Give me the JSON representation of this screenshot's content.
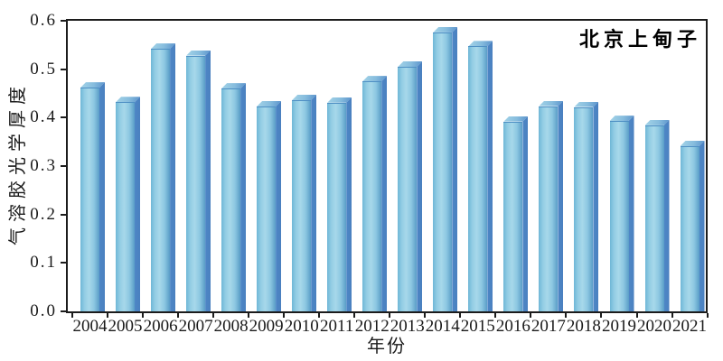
{
  "series_label": "北京上甸子",
  "chart_data": {
    "type": "bar",
    "title": "北京上甸子",
    "xlabel": "年份",
    "ylabel": "气溶胶光学厚度",
    "categories": [
      "2004",
      "2005",
      "2006",
      "2007",
      "2008",
      "2009",
      "2010",
      "2011",
      "2012",
      "2013",
      "2014",
      "2015",
      "2016",
      "2017",
      "2018",
      "2019",
      "2020",
      "2021"
    ],
    "values": [
      0.462,
      0.432,
      0.542,
      0.528,
      0.46,
      0.423,
      0.436,
      0.431,
      0.475,
      0.505,
      0.576,
      0.547,
      0.392,
      0.424,
      0.422,
      0.393,
      0.384,
      0.341
    ],
    "ylim": [
      0,
      0.6
    ],
    "ytick_step": 0.1,
    "ytick_labels": [
      "0.0",
      "0.1",
      "0.2",
      "0.3",
      "0.4",
      "0.5",
      "0.6"
    ],
    "grid": false,
    "legend_position": "top-right-inside",
    "colors": {
      "bar_front": "#8CC7E1",
      "bar_front_highlight": "#A7D8EA",
      "bar_side": "#4C84C4",
      "bar_top": "#7FB5DC",
      "axis": "#1C1C1C",
      "text": "#1A1A1A"
    }
  }
}
